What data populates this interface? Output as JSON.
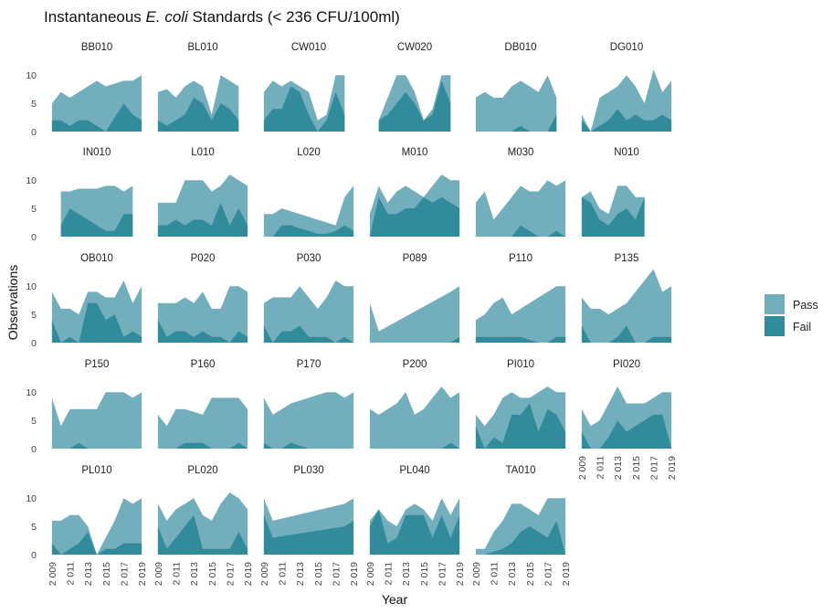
{
  "chart_data": {
    "type": "area",
    "title_prefix": "Instantaneous ",
    "title_italic": "E. coli",
    "title_suffix": " Standards (< 236 CFU/100ml)",
    "xlabel": "Year",
    "ylabel": "Observations",
    "ylim": [
      0,
      11
    ],
    "y_ticks": [
      0,
      5,
      10
    ],
    "x_ticks": [
      2009,
      2011,
      2013,
      2015,
      2017,
      2019
    ],
    "x_tick_labels": [
      "2 009",
      "2 011",
      "2 013",
      "2 015",
      "2 017",
      "2 019"
    ],
    "xlim": [
      2008.5,
      2019.5
    ],
    "legend": [
      {
        "name": "Pass",
        "color": "#72aebc"
      },
      {
        "name": "Fail",
        "color": "#328b9b"
      }
    ],
    "legend_position": "right",
    "grid": false,
    "colors": {
      "pass": "#72aebc",
      "fail": "#328b9b"
    },
    "panels": [
      {
        "name": "BB010",
        "x": [
          2009,
          2010,
          2011,
          2012,
          2013,
          2014,
          2015,
          2016,
          2017,
          2018,
          2019
        ],
        "total": [
          5,
          7,
          6,
          7,
          8,
          9,
          8,
          8.5,
          9,
          9,
          10
        ],
        "fail": [
          2,
          2,
          1,
          2,
          2,
          1,
          0,
          2.5,
          5,
          3,
          2
        ]
      },
      {
        "name": "BL010",
        "x": [
          2009,
          2010,
          2011,
          2012,
          2013,
          2014,
          2015,
          2016,
          2017,
          2018,
          2019
        ],
        "total": [
          7,
          7.5,
          6,
          8,
          9,
          8,
          3,
          10,
          9,
          8,
          null
        ],
        "fail": [
          2,
          1,
          2,
          3,
          6,
          5,
          2,
          5,
          4,
          2,
          null
        ]
      },
      {
        "name": "CW010",
        "x": [
          2009,
          2010,
          2011,
          2012,
          2013,
          2014,
          2015,
          2016,
          2017,
          2018,
          2019
        ],
        "total": [
          7,
          9,
          8,
          9,
          8,
          7,
          2,
          3,
          10,
          10,
          null
        ],
        "fail": [
          2,
          4,
          4,
          8,
          7,
          3,
          0,
          2,
          7,
          3,
          null
        ]
      },
      {
        "name": "CW020",
        "x": [
          2010,
          2011,
          2012,
          2013,
          2014,
          2015,
          2016,
          2017,
          2018,
          2019
        ],
        "total": [
          2,
          6,
          10,
          10,
          7,
          2,
          4,
          10,
          10,
          null
        ],
        "fail": [
          2,
          3,
          5,
          7,
          5,
          2,
          3,
          9,
          5,
          null
        ]
      },
      {
        "name": "DB010",
        "x": [
          2009,
          2010,
          2011,
          2012,
          2013,
          2014,
          2015,
          2016,
          2017,
          2018,
          2019
        ],
        "total": [
          6,
          7,
          6,
          6,
          8,
          9,
          8,
          7,
          10,
          6,
          null
        ],
        "fail": [
          0,
          0,
          0,
          0,
          0,
          1,
          0,
          0,
          0,
          3,
          null
        ]
      },
      {
        "name": "DG010",
        "x": [
          2009,
          2010,
          2011,
          2012,
          2013,
          2014,
          2015,
          2016,
          2017,
          2018,
          2019
        ],
        "total": [
          3,
          0,
          6,
          7,
          8,
          10,
          8,
          5,
          11,
          7,
          9
        ],
        "fail": [
          2,
          0,
          1,
          2,
          4,
          2,
          3,
          2,
          2,
          3,
          2
        ]
      },
      {
        "name": "IN010",
        "x": [
          2010,
          2011,
          2012,
          2013,
          2014,
          2015,
          2016,
          2017,
          2018,
          2019
        ],
        "total": [
          8,
          8,
          8.5,
          8.5,
          8.5,
          9,
          9,
          8,
          9,
          null
        ],
        "fail": [
          2,
          5,
          4,
          3,
          2,
          1,
          1,
          4,
          4,
          null
        ]
      },
      {
        "name": "L010",
        "x": [
          2009,
          2010,
          2011,
          2012,
          2013,
          2014,
          2015,
          2016,
          2017,
          2018,
          2019
        ],
        "total": [
          6,
          6,
          6,
          10,
          10,
          10,
          8,
          9,
          11,
          10,
          9
        ],
        "fail": [
          2,
          2,
          3,
          2,
          3,
          3,
          2,
          6,
          2,
          5,
          2
        ]
      },
      {
        "name": "L020",
        "x": [
          2009,
          2010,
          2011,
          2012,
          2013,
          2014,
          2015,
          2016,
          2017,
          2018,
          2019
        ],
        "total": [
          4,
          4,
          5,
          4.5,
          4,
          3.5,
          3,
          2.5,
          2,
          7,
          9
        ],
        "fail": [
          0,
          0,
          2,
          2,
          1.5,
          1,
          0.5,
          0.5,
          1,
          2,
          1
        ]
      },
      {
        "name": "M010",
        "x": [
          2009,
          2010,
          2011,
          2012,
          2013,
          2014,
          2015,
          2016,
          2017,
          2018,
          2019
        ],
        "total": [
          4,
          9,
          6,
          8,
          9,
          8,
          7,
          9,
          11,
          10,
          10
        ],
        "fail": [
          0,
          7,
          4,
          4,
          5,
          5,
          7,
          6,
          7,
          6,
          5
        ]
      },
      {
        "name": "M030",
        "x": [
          2009,
          2010,
          2011,
          2012,
          2013,
          2014,
          2015,
          2016,
          2017,
          2018,
          2019
        ],
        "total": [
          6,
          8,
          3,
          5,
          7,
          9,
          8,
          8,
          10,
          9,
          10
        ],
        "fail": [
          0,
          0,
          0,
          0,
          0,
          2,
          1,
          0,
          0,
          1,
          0
        ]
      },
      {
        "name": "N010",
        "x": [
          2009,
          2010,
          2011,
          2012,
          2013,
          2014,
          2015,
          2016,
          2017,
          2018,
          2019
        ],
        "total": [
          7,
          8,
          5,
          4,
          9,
          9,
          7,
          7,
          null,
          null,
          null
        ],
        "fail": [
          7,
          6,
          3,
          2,
          4,
          5,
          3,
          7,
          null,
          null,
          null
        ]
      },
      {
        "name": "OB010",
        "x": [
          2009,
          2010,
          2011,
          2012,
          2013,
          2014,
          2015,
          2016,
          2017,
          2018,
          2019
        ],
        "total": [
          9,
          6,
          6,
          5,
          9,
          9,
          8,
          8,
          11,
          7,
          10
        ],
        "fail": [
          4,
          0,
          1,
          0,
          7,
          7,
          4,
          5,
          1,
          2,
          1
        ]
      },
      {
        "name": "P020",
        "x": [
          2009,
          2010,
          2011,
          2012,
          2013,
          2014,
          2015,
          2016,
          2017,
          2018,
          2019
        ],
        "total": [
          7,
          7,
          7,
          8,
          7,
          9,
          6,
          6,
          10,
          10,
          9
        ],
        "fail": [
          4,
          1,
          2,
          2,
          1,
          2,
          1,
          1,
          0,
          2,
          1
        ]
      },
      {
        "name": "P030",
        "x": [
          2009,
          2010,
          2011,
          2012,
          2013,
          2014,
          2015,
          2016,
          2017,
          2018,
          2019
        ],
        "total": [
          7,
          8,
          8,
          8,
          10,
          8,
          6,
          8,
          11,
          10,
          10
        ],
        "fail": [
          3,
          0,
          2,
          2,
          3,
          1,
          1,
          1,
          0,
          1,
          0
        ]
      },
      {
        "name": "P089",
        "x": [
          2009,
          2010,
          2018,
          2019
        ],
        "total": [
          7,
          2,
          9,
          10
        ],
        "fail": [
          0,
          0,
          0,
          1
        ]
      },
      {
        "name": "P110",
        "x": [
          2009,
          2010,
          2011,
          2012,
          2013,
          2014,
          2015,
          2016,
          2017,
          2018,
          2019
        ],
        "total": [
          4,
          5,
          7,
          8,
          5,
          6,
          7,
          8,
          9,
          10,
          10
        ],
        "fail": [
          1,
          1,
          1,
          1,
          1,
          1,
          0.5,
          0,
          0,
          1,
          1
        ]
      },
      {
        "name": "P135",
        "x": [
          2009,
          2010,
          2011,
          2012,
          2013,
          2014,
          2015,
          2016,
          2017,
          2018,
          2019
        ],
        "total": [
          8,
          6,
          6,
          5,
          6,
          7,
          9,
          11,
          13,
          9,
          10
        ],
        "fail": [
          3,
          0,
          0,
          0,
          1,
          3,
          0,
          0,
          1,
          1,
          1
        ]
      },
      {
        "name": "P150",
        "x": [
          2009,
          2010,
          2011,
          2012,
          2013,
          2014,
          2015,
          2016,
          2017,
          2018,
          2019
        ],
        "total": [
          9,
          4,
          7,
          7,
          7,
          7,
          10,
          10,
          10,
          9,
          10
        ],
        "fail": [
          0,
          0,
          0,
          1,
          0,
          0,
          0,
          0,
          0,
          0,
          0
        ]
      },
      {
        "name": "P160",
        "x": [
          2009,
          2010,
          2011,
          2012,
          2013,
          2014,
          2015,
          2016,
          2017,
          2018,
          2019
        ],
        "total": [
          6,
          4,
          7,
          7,
          6.5,
          6,
          9,
          9,
          9,
          9,
          7
        ],
        "fail": [
          0,
          0,
          0,
          1,
          1,
          1,
          0,
          0,
          0,
          1,
          0
        ]
      },
      {
        "name": "P170",
        "x": [
          2009,
          2010,
          2011,
          2012,
          2013,
          2014,
          2015,
          2016,
          2017,
          2018,
          2019
        ],
        "total": [
          9,
          6,
          7,
          8,
          8.5,
          9,
          9.5,
          10,
          10,
          9,
          10
        ],
        "fail": [
          1,
          0,
          0,
          1,
          0.5,
          0,
          0,
          0,
          0,
          0,
          0
        ]
      },
      {
        "name": "P200",
        "x": [
          2009,
          2010,
          2011,
          2012,
          2013,
          2014,
          2015,
          2016,
          2017,
          2018,
          2019
        ],
        "total": [
          7,
          6,
          7,
          8,
          10,
          6,
          7,
          9,
          11,
          9,
          10
        ],
        "fail": [
          0,
          0,
          0,
          0,
          0,
          0,
          0,
          0,
          0,
          1,
          0
        ]
      },
      {
        "name": "PI010",
        "x": [
          2009,
          2010,
          2011,
          2012,
          2013,
          2014,
          2015,
          2016,
          2017,
          2018,
          2019
        ],
        "total": [
          6,
          4,
          6,
          9,
          10,
          9,
          9,
          10,
          11,
          10,
          10
        ],
        "fail": [
          4,
          0,
          2,
          1,
          6,
          6,
          8,
          3,
          7,
          6,
          3
        ]
      },
      {
        "name": "PI020",
        "x": [
          2009,
          2010,
          2011,
          2012,
          2013,
          2014,
          2015,
          2016,
          2017,
          2018,
          2019
        ],
        "total": [
          7,
          4,
          5,
          8,
          11,
          8,
          8,
          8,
          9,
          10,
          10
        ],
        "fail": [
          3,
          0,
          0,
          2,
          5,
          3,
          4,
          5,
          6,
          6,
          0
        ]
      },
      {
        "name": "PL010",
        "x": [
          2009,
          2010,
          2011,
          2012,
          2013,
          2014,
          2015,
          2016,
          2017,
          2018,
          2019
        ],
        "total": [
          6,
          6,
          7,
          7,
          5,
          0,
          3,
          6,
          10,
          9,
          10
        ],
        "fail": [
          2,
          0,
          1,
          2,
          4,
          0,
          1,
          1,
          2,
          2,
          2
        ]
      },
      {
        "name": "PL020",
        "x": [
          2009,
          2010,
          2011,
          2012,
          2013,
          2014,
          2015,
          2016,
          2017,
          2018,
          2019
        ],
        "total": [
          9,
          6,
          8,
          9,
          10,
          7,
          6,
          9,
          11,
          10,
          8
        ],
        "fail": [
          5,
          1,
          3,
          5,
          7,
          1,
          1,
          1,
          1,
          4,
          1
        ]
      },
      {
        "name": "PL030",
        "x": [
          2009,
          2010,
          2018,
          2019
        ],
        "total": [
          10,
          6,
          9,
          10
        ],
        "fail": [
          7,
          3,
          5,
          6
        ]
      },
      {
        "name": "PL040",
        "x": [
          2009,
          2010,
          2011,
          2012,
          2013,
          2014,
          2015,
          2016,
          2017,
          2018,
          2019
        ],
        "total": [
          6,
          8,
          6,
          5,
          8,
          9,
          8,
          6,
          10,
          7,
          10
        ],
        "fail": [
          5,
          8,
          2,
          3,
          7,
          7,
          7,
          3,
          7,
          3,
          7
        ]
      },
      {
        "name": "TA010",
        "x": [
          2009,
          2010,
          2011,
          2012,
          2013,
          2014,
          2015,
          2016,
          2017,
          2018,
          2019
        ],
        "total": [
          1,
          1,
          4,
          6,
          9,
          9,
          8,
          7,
          10,
          10,
          10
        ],
        "fail": [
          0,
          0,
          0.5,
          1,
          2,
          4,
          5,
          4,
          3,
          6,
          0
        ]
      }
    ]
  }
}
